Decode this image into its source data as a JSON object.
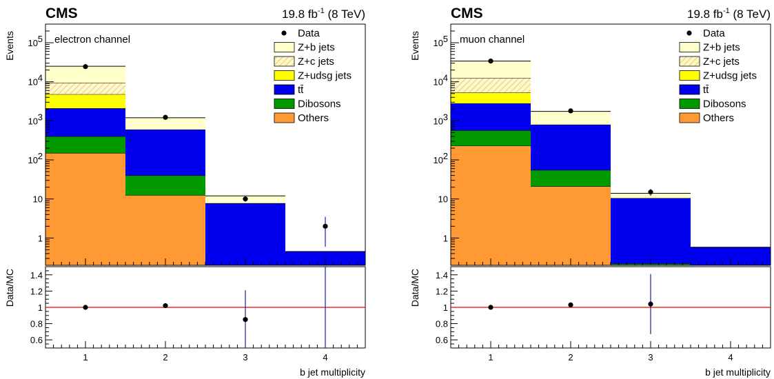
{
  "chart_data": [
    {
      "type": "bar",
      "stacked": true,
      "ylog": true,
      "experiment": "CMS",
      "lumi": {
        "value": "19.8 fb",
        "sup": "-1",
        "energy": "(8 TeV)"
      },
      "annotation": "electron channel",
      "xlabel": "b jet multiplicity",
      "ylabel": "Events",
      "ratio_ylabel": "Data/MC",
      "x_tick_labels": [
        "1",
        "2",
        "3",
        "4"
      ],
      "xlim": [
        0.5,
        4.5
      ],
      "ylim": [
        0.2,
        300000
      ],
      "ratio_ylim": [
        0.5,
        1.5
      ],
      "legend_position": "top-right",
      "stack_top_to_bottom": [
        "Z+b jets",
        "Z+c jets",
        "Z+udsg jets",
        "tt̄",
        "Dibosons",
        "Others"
      ],
      "series_totals": [
        {
          "name": "Others",
          "color": "#ff9933",
          "values": [
            150,
            12.5,
            0,
            0
          ]
        },
        {
          "name": "Dibosons",
          "color": "#009900",
          "values": [
            400,
            40,
            0,
            0
          ]
        },
        {
          "name": "tt̄",
          "color": "#0000ee",
          "values": [
            2100,
            600,
            7.8,
            0.45
          ]
        },
        {
          "name": "Z+udsg jets",
          "color": "#ffff00",
          "values": [
            4800,
            600,
            7.8,
            0.45
          ]
        },
        {
          "name": "Z+c jets",
          "color": "#fff7c4",
          "hatch": true,
          "values": [
            9500,
            600,
            7.8,
            0.45
          ]
        },
        {
          "name": "Z+b jets",
          "color": "#ffffcc",
          "values": [
            25000,
            1200,
            12,
            0.45
          ]
        }
      ],
      "data": {
        "name": "Data",
        "x": [
          1,
          2,
          3,
          4
        ],
        "y": [
          24500,
          1230,
          10,
          2.0
        ],
        "yerr_low": [
          0,
          0,
          1.5,
          1.4
        ],
        "yerr_high": [
          0,
          0,
          1.5,
          1.5
        ]
      },
      "ratio": {
        "x": [
          1,
          2,
          3,
          4
        ],
        "y": [
          1.0,
          1.02,
          0.85,
          null
        ],
        "err": [
          0,
          0,
          0.36,
          1.0
        ]
      }
    },
    {
      "type": "bar",
      "stacked": true,
      "ylog": true,
      "experiment": "CMS",
      "lumi": {
        "value": "19.8 fb",
        "sup": "-1",
        "energy": "(8 TeV)"
      },
      "annotation": "muon channel",
      "xlabel": "b jet multiplicity",
      "ylabel": "Events",
      "ratio_ylabel": "Data/MC",
      "x_tick_labels": [
        "1",
        "2",
        "3",
        "4"
      ],
      "xlim": [
        0.5,
        4.5
      ],
      "ylim": [
        0.2,
        300000
      ],
      "ratio_ylim": [
        0.5,
        1.5
      ],
      "legend_position": "top-right",
      "stack_top_to_bottom": [
        "Z+b jets",
        "Z+c jets",
        "Z+udsg jets",
        "tt̄",
        "Dibosons",
        "Others"
      ],
      "series_totals": [
        {
          "name": "Others",
          "color": "#ff9933",
          "values": [
            230,
            21,
            0,
            0
          ]
        },
        {
          "name": "Dibosons",
          "color": "#009900",
          "values": [
            570,
            55,
            0.22,
            0
          ]
        },
        {
          "name": "tt̄",
          "color": "#0000ee",
          "values": [
            2800,
            800,
            10.5,
            0.58
          ]
        },
        {
          "name": "Z+udsg jets",
          "color": "#ffff00",
          "values": [
            5300,
            800,
            10.5,
            0.58
          ]
        },
        {
          "name": "Z+c jets",
          "color": "#fff7c4",
          "hatch": true,
          "values": [
            12500,
            800,
            10.5,
            0.58
          ]
        },
        {
          "name": "Z+b jets",
          "color": "#ffffcc",
          "values": [
            34000,
            1750,
            14,
            0.58
          ]
        }
      ],
      "data": {
        "name": "Data",
        "x": [
          1,
          2,
          3
        ],
        "y": [
          34000,
          1800,
          15
        ],
        "yerr_low": [
          0,
          0,
          3
        ],
        "yerr_high": [
          0,
          0,
          3
        ]
      },
      "ratio": {
        "x": [
          1,
          2,
          3
        ],
        "y": [
          1.0,
          1.03,
          1.04
        ],
        "err": [
          0,
          0,
          0.37
        ]
      }
    }
  ]
}
